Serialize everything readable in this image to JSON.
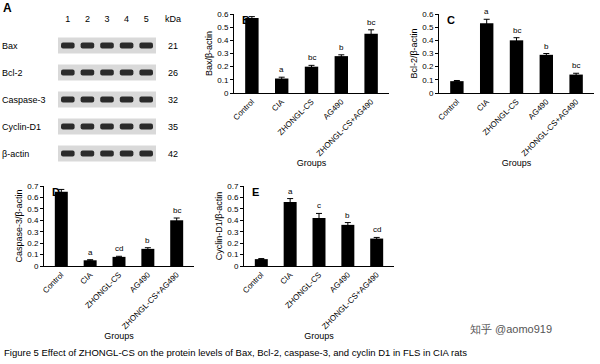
{
  "panel_a": {
    "label": "A",
    "lanes": [
      1,
      2,
      3,
      4,
      5
    ],
    "unit": "kDa",
    "proteins": [
      {
        "name": "Bax",
        "kda": 21
      },
      {
        "name": "Bcl-2",
        "kda": 26
      },
      {
        "name": "Caspase-3",
        "kda": 32
      },
      {
        "name": "Cyclin-D1",
        "kda": 35
      },
      {
        "name": "β-actin",
        "kda": 42
      }
    ]
  },
  "chart_data": [
    {
      "type": "bar",
      "label": "B",
      "categories": [
        "Control",
        "CIA",
        "ZHONGL-CS",
        "AG490",
        "ZHONGL-CS+AG490"
      ],
      "values": [
        0.57,
        0.11,
        0.2,
        0.28,
        0.45
      ],
      "errors": [
        0.01,
        0.01,
        0.01,
        0.01,
        0.03
      ],
      "annotations": [
        null,
        "a",
        "bc",
        "b",
        "bc"
      ],
      "x_label": "Groups",
      "y_label": "Bax/β-actin",
      "ylim": [
        0,
        0.6
      ],
      "yticks": [
        0,
        0.1,
        0.2,
        0.3,
        0.4,
        0.5,
        0.6
      ],
      "color": "#000000",
      "grid": false
    },
    {
      "type": "bar",
      "label": "C",
      "categories": [
        "Control",
        "CIA",
        "ZHONGL-CS",
        "AG490",
        "ZHONGL-CS+AG490"
      ],
      "values": [
        0.09,
        0.53,
        0.4,
        0.29,
        0.14
      ],
      "errors": [
        0.005,
        0.03,
        0.02,
        0.01,
        0.01
      ],
      "annotations": [
        null,
        "a",
        "bc",
        "b",
        "bc"
      ],
      "x_label": "Groups",
      "y_label": "Bcl-2/β-actin",
      "ylim": [
        0,
        0.6
      ],
      "yticks": [
        0,
        0.1,
        0.2,
        0.3,
        0.4,
        0.5,
        0.6
      ],
      "color": "#000000",
      "grid": false
    },
    {
      "type": "bar",
      "label": "D",
      "categories": [
        "Control",
        "CIA",
        "ZHONGL-CS",
        "AG490",
        "ZHONGL-CS+AG490"
      ],
      "values": [
        0.65,
        0.05,
        0.08,
        0.15,
        0.4
      ],
      "errors": [
        0.02,
        0.005,
        0.005,
        0.01,
        0.02
      ],
      "annotations": [
        null,
        "a",
        "cd",
        "b",
        "bc"
      ],
      "x_label": "Groups",
      "y_label": "Caspase-3/β-actin",
      "ylim": [
        0,
        0.7
      ],
      "yticks": [
        0,
        0.1,
        0.2,
        0.3,
        0.4,
        0.5,
        0.6,
        0.7
      ],
      "color": "#000000",
      "grid": false
    },
    {
      "type": "bar",
      "label": "E",
      "categories": [
        "Control",
        "CIA",
        "ZHONGL-CS",
        "AG490",
        "ZHONGL-CS+AG490"
      ],
      "values": [
        0.06,
        0.56,
        0.42,
        0.36,
        0.24
      ],
      "errors": [
        0.005,
        0.03,
        0.04,
        0.02,
        0.01
      ],
      "annotations": [
        null,
        "a",
        "c",
        "b",
        "cd"
      ],
      "x_label": "Groups",
      "y_label": "Cyclin-D1/β-actin",
      "ylim": [
        0,
        0.7
      ],
      "yticks": [
        0,
        0.1,
        0.2,
        0.3,
        0.4,
        0.5,
        0.6,
        0.7
      ],
      "color": "#000000",
      "grid": false
    }
  ],
  "caption": "Figure 5 Effect of ZHONGL-CS on the protein levels of Bax, Bcl-2, caspase-3, and cyclin D1 in FLS in CIA rats",
  "watermark": "知乎 @aomo919"
}
